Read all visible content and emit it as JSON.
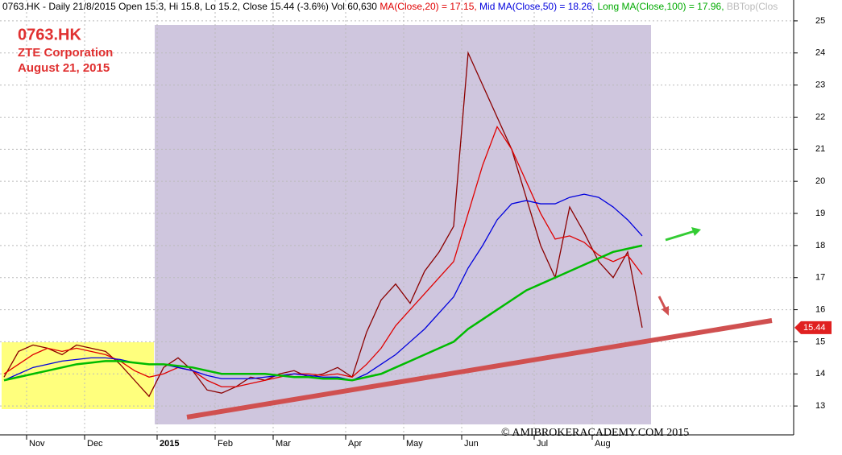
{
  "chart_data": {
    "type": "line",
    "header": [
      {
        "text": "0763.HK - Daily 21/8/2015 Open 15.3, Hi 15.8, Lo 15.2, Close 15.44 (-3.6%) Vol 60,630 ",
        "color": "#000000"
      },
      {
        "text": "MA(Close,20) = 17.15, ",
        "color": "#e00000"
      },
      {
        "text": "Mid MA(Close,50) = 18.26, ",
        "color": "#0000dd"
      },
      {
        "text": "Long MA(Close,100) = 17.96, ",
        "color": "#00aa00"
      },
      {
        "text": "BBTop(Clos",
        "color": "#bbbbbb"
      }
    ],
    "title": "0763.HK",
    "subtitle": "ZTE Corporation",
    "date_label": "August 21, 2015",
    "watermark": "© AMIBROKERACADEMY.COM   2015",
    "categories": [
      null,
      null,
      "Nov",
      null,
      null,
      null,
      "Dec",
      null,
      null,
      null,
      null,
      "2015",
      null,
      null,
      null,
      "Feb",
      null,
      null,
      null,
      "Mar",
      null,
      null,
      null,
      null,
      "Apr",
      null,
      null,
      null,
      "May",
      null,
      null,
      null,
      "Jun",
      null,
      null,
      null,
      null,
      "Jul",
      null,
      null,
      null,
      "Aug",
      null,
      null,
      null
    ],
    "series": [
      {
        "color": "#8b0000",
        "values": [
          13.9,
          14.7,
          14.9,
          14.8,
          14.6,
          14.9,
          14.8,
          14.7,
          14.3,
          13.8,
          13.3,
          14.2,
          14.5,
          14.1,
          13.5,
          13.4,
          13.6,
          13.9,
          13.8,
          14.0,
          14.1,
          13.9,
          14.0,
          14.2,
          13.9,
          15.3,
          16.3,
          16.8,
          16.2,
          17.2,
          17.8,
          18.6,
          24.0,
          23.0,
          22.0,
          21.0,
          19.5,
          18.0,
          17.0,
          19.2,
          18.4,
          17.5,
          17.0,
          17.8,
          15.44
        ]
      },
      {
        "color": "#e00000",
        "values": [
          14.0,
          14.3,
          14.6,
          14.8,
          14.7,
          14.8,
          14.7,
          14.6,
          14.4,
          14.1,
          13.9,
          14.0,
          14.2,
          14.1,
          13.8,
          13.6,
          13.6,
          13.7,
          13.8,
          13.9,
          14.0,
          14.0,
          13.95,
          14.0,
          13.9,
          14.3,
          14.8,
          15.5,
          16.0,
          16.5,
          17.0,
          17.5,
          19.0,
          20.5,
          21.7,
          21.0,
          20.0,
          19.0,
          18.2,
          18.3,
          18.1,
          17.7,
          17.5,
          17.7,
          17.1
        ]
      },
      {
        "color": "#0000dd",
        "values": [
          13.8,
          14.0,
          14.2,
          14.3,
          14.4,
          14.45,
          14.5,
          14.5,
          14.45,
          14.35,
          14.3,
          14.3,
          14.2,
          14.1,
          13.95,
          13.85,
          13.85,
          13.85,
          13.9,
          13.95,
          14.0,
          13.95,
          13.9,
          13.9,
          13.8,
          14.0,
          14.3,
          14.6,
          15.0,
          15.4,
          15.9,
          16.4,
          17.3,
          18.0,
          18.8,
          19.3,
          19.4,
          19.3,
          19.3,
          19.5,
          19.6,
          19.5,
          19.2,
          18.8,
          18.3
        ]
      },
      {
        "color": "#00bb00",
        "values": [
          13.8,
          13.9,
          14.0,
          14.1,
          14.2,
          14.3,
          14.35,
          14.4,
          14.4,
          14.35,
          14.3,
          14.3,
          14.25,
          14.2,
          14.1,
          14.0,
          14.0,
          14.0,
          14.0,
          13.95,
          13.9,
          13.9,
          13.85,
          13.85,
          13.8,
          13.9,
          14.0,
          14.2,
          14.4,
          14.6,
          14.8,
          15.0,
          15.4,
          15.7,
          16.0,
          16.3,
          16.6,
          16.8,
          17.0,
          17.2,
          17.4,
          17.6,
          17.8,
          17.9,
          18.0
        ]
      }
    ],
    "ylim": [
      12.1,
      25.65
    ],
    "yticks": [
      13,
      14,
      15,
      16,
      17,
      18,
      19,
      20,
      21,
      22,
      23,
      24,
      25
    ],
    "grid": true
  }
}
